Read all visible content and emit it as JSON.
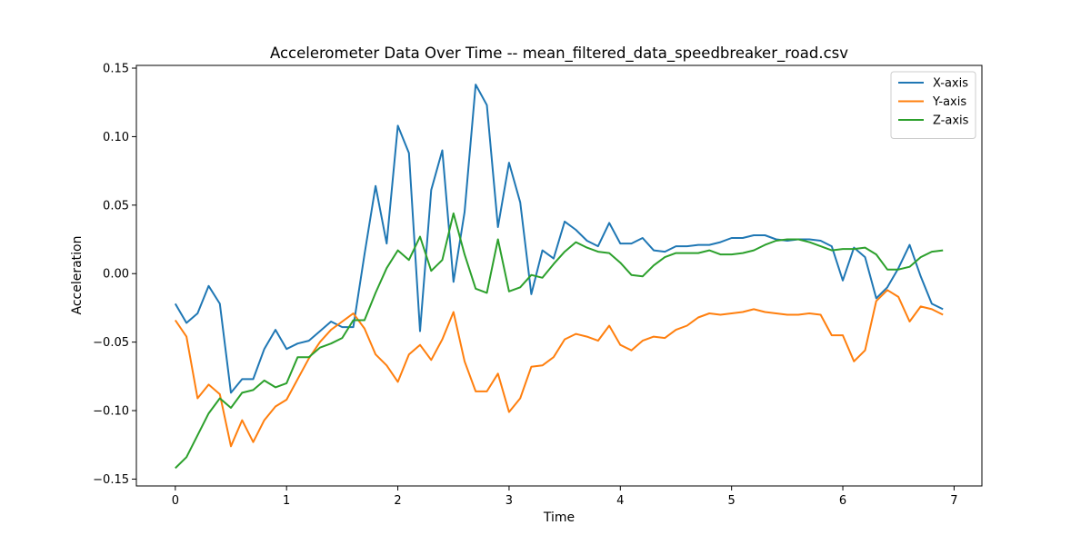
{
  "chart_data": {
    "type": "line",
    "title": "Accelerometer Data Over Time -- mean_filtered_data_speedbreaker_road.csv",
    "xlabel": "Time",
    "ylabel": "Acceleration",
    "xlim": [
      -0.35,
      7.25
    ],
    "ylim": [
      -0.155,
      0.152
    ],
    "xticks": [
      0,
      1,
      2,
      3,
      4,
      5,
      6,
      7
    ],
    "xtick_labels": [
      "0",
      "1",
      "2",
      "3",
      "4",
      "5",
      "6",
      "7"
    ],
    "yticks": [
      -0.15,
      -0.1,
      -0.05,
      0.0,
      0.05,
      0.1,
      0.15
    ],
    "ytick_labels": [
      "−0.15",
      "−0.10",
      "−0.05",
      "0.00",
      "0.05",
      "0.10",
      "0.15"
    ],
    "grid": false,
    "legend_position": "top-right",
    "x": [
      0.0,
      0.1,
      0.2,
      0.3,
      0.4,
      0.5,
      0.6,
      0.7,
      0.8,
      0.9,
      1.0,
      1.1,
      1.2,
      1.3,
      1.4,
      1.5,
      1.6,
      1.7,
      1.8,
      1.9,
      2.0,
      2.1,
      2.2,
      2.3,
      2.4,
      2.5,
      2.6,
      2.7,
      2.8,
      2.9,
      3.0,
      3.1,
      3.2,
      3.3,
      3.4,
      3.5,
      3.6,
      3.7,
      3.8,
      3.9,
      4.0,
      4.1,
      4.2,
      4.3,
      4.4,
      4.5,
      4.6,
      4.7,
      4.8,
      4.9,
      5.0,
      5.1,
      5.2,
      5.3,
      5.4,
      5.5,
      5.6,
      5.7,
      5.8,
      5.9,
      6.0,
      6.1,
      6.2,
      6.3,
      6.4,
      6.5,
      6.6,
      6.7,
      6.8,
      6.9
    ],
    "series": [
      {
        "name": "X-axis",
        "color": "#1f77b4",
        "values": [
          -0.022,
          -0.036,
          -0.029,
          -0.009,
          -0.022,
          -0.087,
          -0.077,
          -0.077,
          -0.055,
          -0.041,
          -0.055,
          -0.051,
          -0.049,
          -0.042,
          -0.035,
          -0.039,
          -0.039,
          0.014,
          0.064,
          0.022,
          0.108,
          0.088,
          -0.042,
          0.061,
          0.09,
          -0.006,
          0.045,
          0.138,
          0.123,
          0.034,
          0.081,
          0.052,
          -0.015,
          0.017,
          0.011,
          0.038,
          0.032,
          0.024,
          0.02,
          0.037,
          0.022,
          0.022,
          0.026,
          0.017,
          0.016,
          0.02,
          0.02,
          0.021,
          0.021,
          0.023,
          0.026,
          0.026,
          0.028,
          0.028,
          0.025,
          0.024,
          0.025,
          0.025,
          0.024,
          0.02,
          -0.005,
          0.019,
          0.012,
          -0.018,
          -0.01,
          0.004,
          0.021,
          -0.002,
          -0.022,
          -0.026
        ]
      },
      {
        "name": "Y-axis",
        "color": "#ff7f0e",
        "values": [
          -0.034,
          -0.046,
          -0.091,
          -0.081,
          -0.088,
          -0.126,
          -0.107,
          -0.123,
          -0.107,
          -0.097,
          -0.092,
          -0.077,
          -0.062,
          -0.05,
          -0.041,
          -0.035,
          -0.029,
          -0.04,
          -0.059,
          -0.067,
          -0.079,
          -0.059,
          -0.052,
          -0.063,
          -0.048,
          -0.028,
          -0.064,
          -0.086,
          -0.086,
          -0.073,
          -0.101,
          -0.091,
          -0.068,
          -0.067,
          -0.061,
          -0.048,
          -0.044,
          -0.046,
          -0.049,
          -0.038,
          -0.052,
          -0.056,
          -0.049,
          -0.046,
          -0.047,
          -0.041,
          -0.038,
          -0.032,
          -0.029,
          -0.03,
          -0.029,
          -0.028,
          -0.026,
          -0.028,
          -0.029,
          -0.03,
          -0.03,
          -0.029,
          -0.03,
          -0.045,
          -0.045,
          -0.064,
          -0.056,
          -0.02,
          -0.012,
          -0.017,
          -0.035,
          -0.024,
          -0.026,
          -0.03
        ]
      },
      {
        "name": "Z-axis",
        "color": "#2ca02c",
        "values": [
          -0.142,
          -0.134,
          -0.118,
          -0.102,
          -0.091,
          -0.098,
          -0.087,
          -0.085,
          -0.078,
          -0.083,
          -0.08,
          -0.061,
          -0.061,
          -0.054,
          -0.051,
          -0.047,
          -0.034,
          -0.034,
          -0.014,
          0.004,
          0.017,
          0.01,
          0.027,
          0.002,
          0.01,
          0.044,
          0.014,
          -0.011,
          -0.014,
          0.025,
          -0.013,
          -0.01,
          -0.001,
          -0.003,
          0.007,
          0.016,
          0.023,
          0.019,
          0.016,
          0.015,
          0.008,
          -0.001,
          -0.002,
          0.006,
          0.012,
          0.015,
          0.015,
          0.015,
          0.017,
          0.014,
          0.014,
          0.015,
          0.017,
          0.021,
          0.024,
          0.025,
          0.025,
          0.023,
          0.02,
          0.017,
          0.018,
          0.018,
          0.019,
          0.014,
          0.003,
          0.003,
          0.005,
          0.012,
          0.016,
          0.017
        ]
      }
    ]
  }
}
